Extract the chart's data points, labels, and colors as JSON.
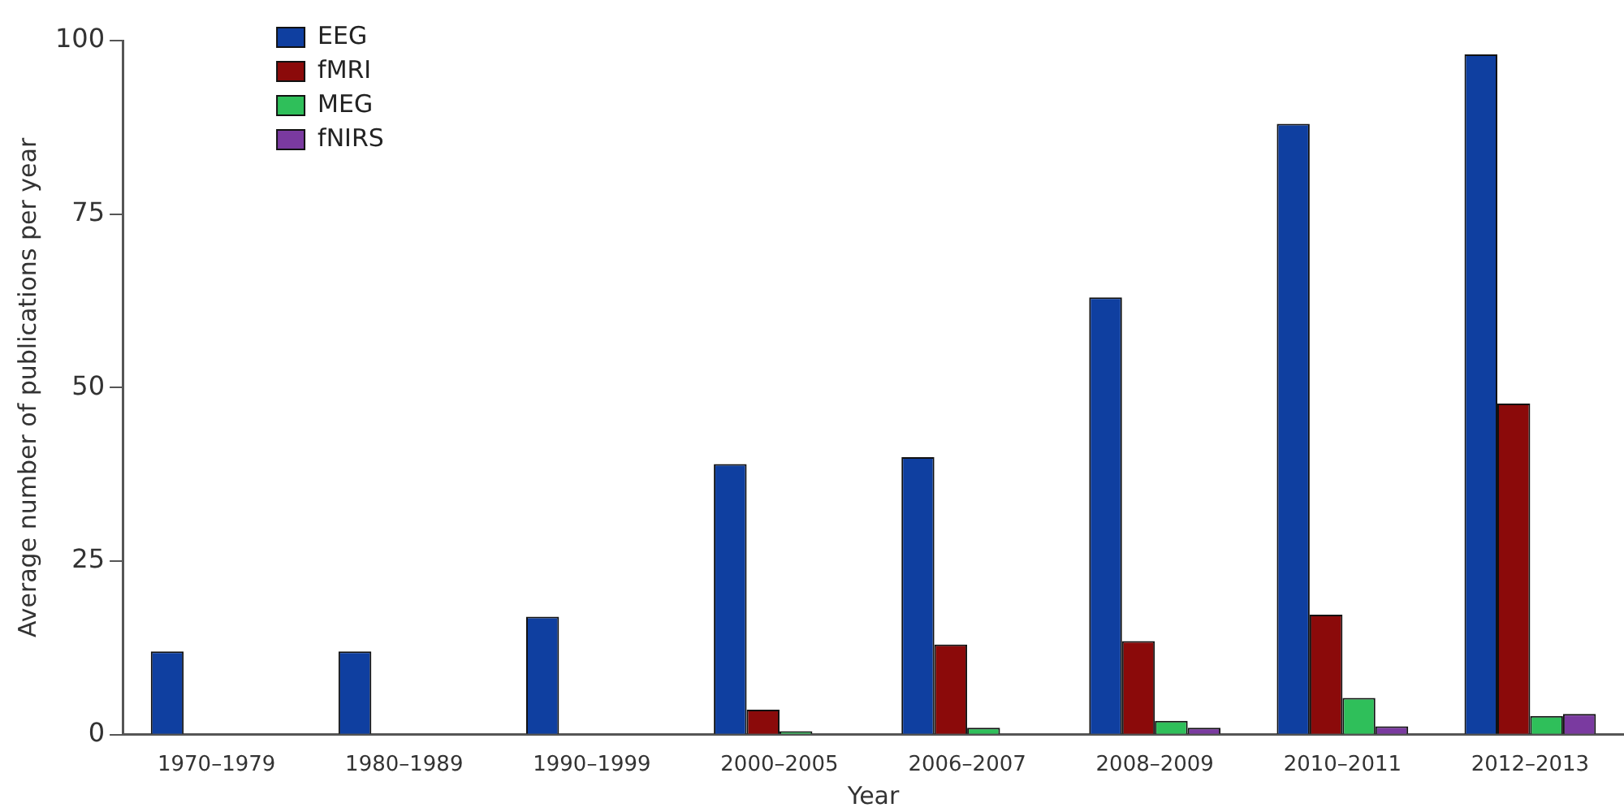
{
  "chart_data": {
    "type": "bar",
    "xlabel": "Year",
    "ylabel": "Average number of publications per year",
    "categories": [
      "1970–1979",
      "1980–1989",
      "1990–1999",
      "2000–2005",
      "2006–2007",
      "2008–2009",
      "2010–2011",
      "2012–2013"
    ],
    "series": [
      {
        "name": "EEG",
        "color": "#0f3fa0",
        "values": [
          12,
          12,
          17,
          39,
          40,
          63,
          88,
          98
        ]
      },
      {
        "name": "fMRI",
        "color": "#8b0a0a",
        "values": [
          0,
          0,
          0,
          3.6,
          13,
          13.5,
          17.3,
          47.7
        ]
      },
      {
        "name": "MEG",
        "color": "#2fbf5a",
        "values": [
          0,
          0,
          0,
          0.5,
          1,
          2,
          5.3,
          2.7
        ]
      },
      {
        "name": "fNIRS",
        "color": "#7a3aa0",
        "values": [
          0,
          0,
          0,
          0,
          0,
          1,
          1.2,
          3
        ]
      }
    ],
    "ylim": [
      0,
      100
    ],
    "yticks": [
      0,
      25,
      50,
      75,
      100
    ],
    "grid": false,
    "legend": "top left"
  }
}
